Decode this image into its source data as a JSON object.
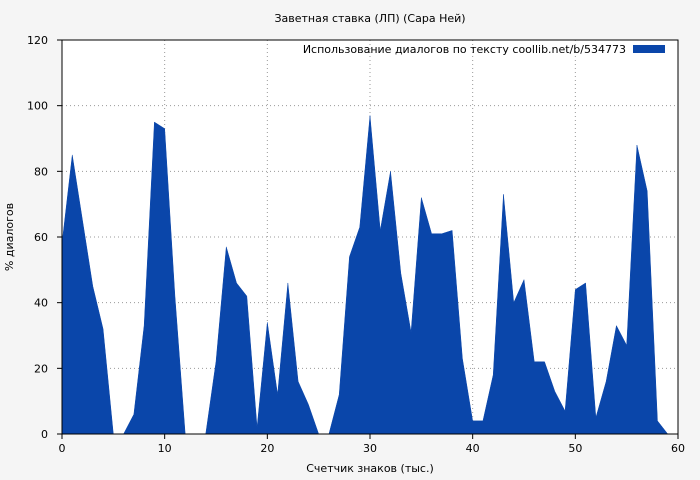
{
  "chart_data": {
    "type": "area",
    "title": "Заветная ставка (ЛП) (Сара Ней)",
    "xlabel": "Счетчик знаков (тыс.)",
    "ylabel": "% диалогов",
    "xlim": [
      0,
      60
    ],
    "ylim": [
      0,
      120
    ],
    "x_ticks": [
      "0",
      "10",
      "20",
      "30",
      "40",
      "50",
      "60"
    ],
    "y_ticks": [
      "0",
      "20",
      "40",
      "60",
      "80",
      "100",
      "120"
    ],
    "grid": true,
    "legend_position": "top-right",
    "series": [
      {
        "name": "Использование диалогов по тексту  coollib.net/b/534773",
        "color": "#0a46aa",
        "x": [
          0,
          1,
          2,
          3,
          4,
          5,
          6,
          7,
          8,
          9,
          10,
          11,
          12,
          13,
          14,
          15,
          16,
          17,
          18,
          19,
          20,
          21,
          22,
          23,
          24,
          25,
          26,
          27,
          28,
          29,
          30,
          31,
          32,
          33,
          34,
          35,
          36,
          37,
          38,
          39,
          40,
          41,
          42,
          43,
          44,
          45,
          46,
          47,
          48,
          49,
          50,
          51,
          52,
          53,
          54,
          55,
          56,
          57,
          58,
          59
        ],
        "y": [
          58,
          85,
          65,
          45,
          32,
          0,
          0,
          6,
          33,
          95,
          93,
          42,
          0,
          0,
          0,
          22,
          57,
          46,
          42,
          2,
          34,
          12,
          46,
          16,
          9,
          0,
          0,
          12,
          54,
          63,
          97,
          62,
          80,
          49,
          31,
          72,
          61,
          61,
          62,
          23,
          4,
          4,
          18,
          73,
          40,
          47,
          22,
          22,
          13,
          7,
          44,
          46,
          5,
          16,
          33,
          27,
          88,
          74,
          4,
          0
        ]
      }
    ]
  }
}
